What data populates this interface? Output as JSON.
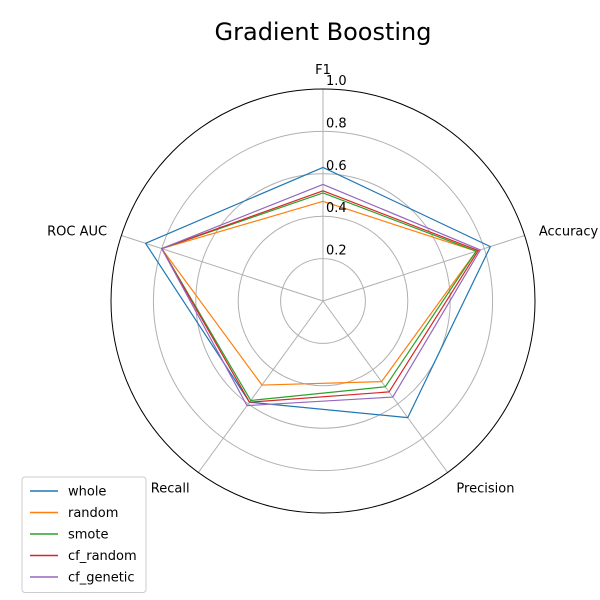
{
  "chart_data": {
    "type": "radar",
    "title": "Gradient Boosting",
    "axes": [
      "F1",
      "Accuracy",
      "Precision",
      "Recall",
      "ROC AUC"
    ],
    "rlim": [
      0,
      1.0
    ],
    "rticks": [
      0.2,
      0.4,
      0.6,
      0.8,
      1.0
    ],
    "rtick_labels": [
      "0.2",
      "0.4",
      "0.6",
      "0.8",
      "1.0"
    ],
    "grid": true,
    "legend_position": "lower-left",
    "series": [
      {
        "name": "whole",
        "color": "#1f77b4",
        "values": [
          0.63,
          0.83,
          0.68,
          0.59,
          0.88
        ]
      },
      {
        "name": "random",
        "color": "#ff7f0e",
        "values": [
          0.47,
          0.76,
          0.47,
          0.49,
          0.8
        ]
      },
      {
        "name": "smote",
        "color": "#2ca02c",
        "values": [
          0.51,
          0.76,
          0.5,
          0.58,
          0.8
        ]
      },
      {
        "name": "cf_random",
        "color": "#d62728",
        "values": [
          0.52,
          0.77,
          0.53,
          0.59,
          0.8
        ]
      },
      {
        "name": "cf_genetic",
        "color": "#9467bd",
        "values": [
          0.55,
          0.78,
          0.56,
          0.61,
          0.8
        ]
      }
    ]
  }
}
